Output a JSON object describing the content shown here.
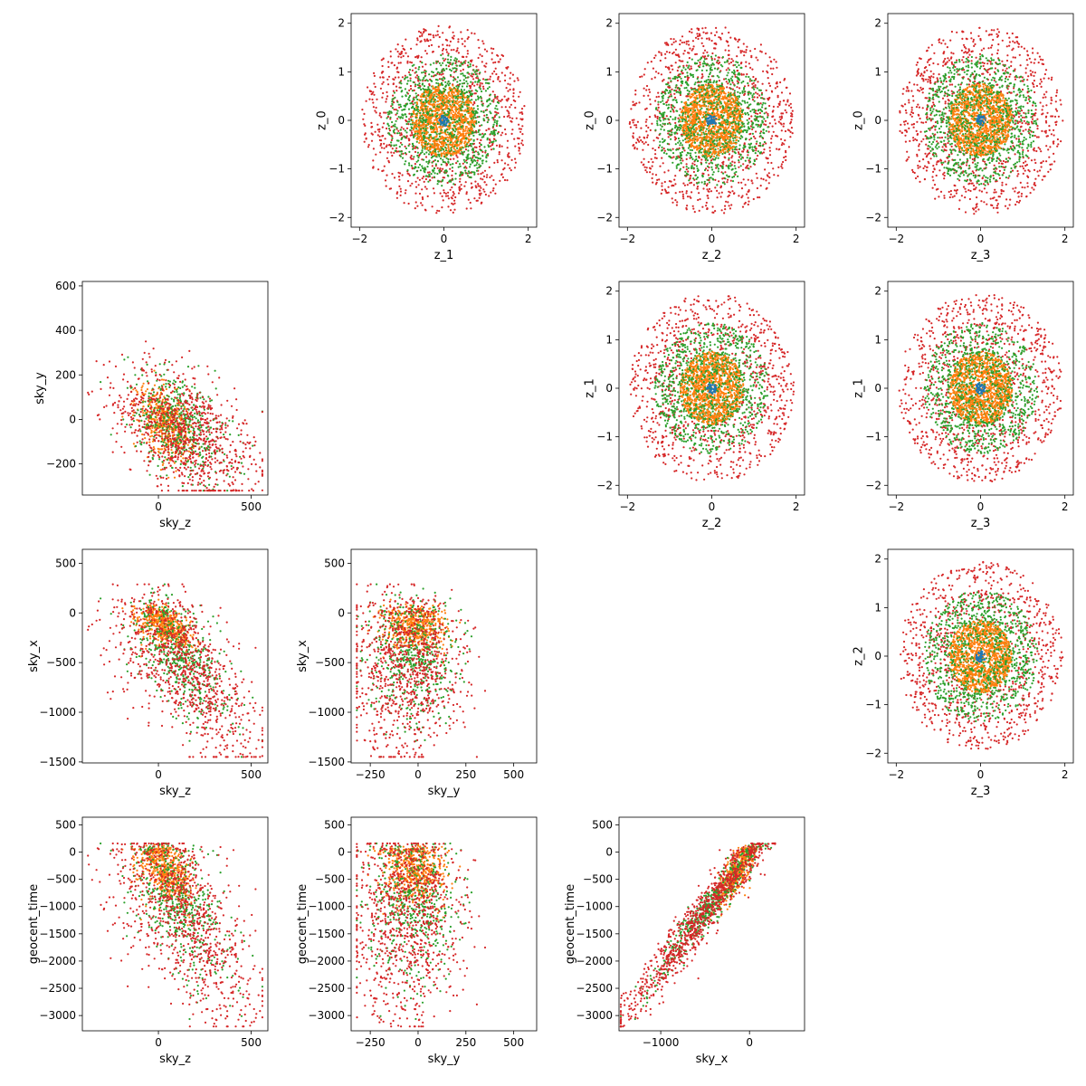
{
  "colors": {
    "c0": "#1f77b4",
    "c1": "#ff7f0e",
    "c2": "#2ca02c",
    "c3": "#d62728"
  },
  "chart_data": [
    {
      "type": "scatter",
      "row": 0,
      "col": 1,
      "xlabel": "z_1",
      "ylabel": "z_0",
      "xlim": [
        -2.2,
        2.2
      ],
      "ylim": [
        -2.2,
        2.2
      ],
      "xticks": [
        -2,
        0,
        2
      ],
      "yticks": [
        -2,
        -1,
        0,
        1,
        2
      ],
      "xticklabels": [
        "−2",
        "0",
        "2"
      ],
      "yticklabels": [
        "−2",
        "−1",
        "0",
        "1",
        "2"
      ]
    },
    {
      "type": "scatter",
      "row": 0,
      "col": 2,
      "xlabel": "z_2",
      "ylabel": "z_0",
      "xlim": [
        -2.2,
        2.2
      ],
      "ylim": [
        -2.2,
        2.2
      ],
      "xticks": [
        -2,
        0,
        2
      ],
      "yticks": [
        -2,
        -1,
        0,
        1,
        2
      ],
      "xticklabels": [
        "−2",
        "0",
        "2"
      ],
      "yticklabels": [
        "−2",
        "−1",
        "0",
        "1",
        "2"
      ]
    },
    {
      "type": "scatter",
      "row": 0,
      "col": 3,
      "xlabel": "z_3",
      "ylabel": "z_0",
      "xlim": [
        -2.2,
        2.2
      ],
      "ylim": [
        -2.2,
        2.2
      ],
      "xticks": [
        -2,
        0,
        2
      ],
      "yticks": [
        -2,
        -1,
        0,
        1,
        2
      ],
      "xticklabels": [
        "−2",
        "0",
        "2"
      ],
      "yticklabels": [
        "−2",
        "−1",
        "0",
        "1",
        "2"
      ]
    },
    {
      "type": "scatter",
      "row": 1,
      "col": 0,
      "xlabel": "sky_z",
      "ylabel": "sky_y",
      "xlim": [
        -410,
        590
      ],
      "ylim": [
        -340,
        620
      ],
      "xticks": [
        0,
        500
      ],
      "yticks": [
        -200,
        0,
        200,
        400,
        600
      ],
      "xticklabels": [
        "0",
        "500"
      ],
      "yticklabels": [
        "−200",
        "0",
        "200",
        "400",
        "600"
      ]
    },
    {
      "type": "scatter",
      "row": 1,
      "col": 2,
      "xlabel": "z_2",
      "ylabel": "z_1",
      "xlim": [
        -2.2,
        2.2
      ],
      "ylim": [
        -2.2,
        2.2
      ],
      "xticks": [
        -2,
        0,
        2
      ],
      "yticks": [
        -2,
        -1,
        0,
        1,
        2
      ],
      "xticklabels": [
        "−2",
        "0",
        "2"
      ],
      "yticklabels": [
        "−2",
        "−1",
        "0",
        "1",
        "2"
      ]
    },
    {
      "type": "scatter",
      "row": 1,
      "col": 3,
      "xlabel": "z_3",
      "ylabel": "z_1",
      "xlim": [
        -2.2,
        2.2
      ],
      "ylim": [
        -2.2,
        2.2
      ],
      "xticks": [
        -2,
        0,
        2
      ],
      "yticks": [
        -2,
        -1,
        0,
        1,
        2
      ],
      "xticklabels": [
        "−2",
        "0",
        "2"
      ],
      "yticklabels": [
        "−2",
        "−1",
        "0",
        "1",
        "2"
      ]
    },
    {
      "type": "scatter",
      "row": 2,
      "col": 0,
      "xlabel": "sky_z",
      "ylabel": "sky_x",
      "xlim": [
        -410,
        590
      ],
      "ylim": [
        -1510,
        640
      ],
      "xticks": [
        0,
        500
      ],
      "yticks": [
        -1500,
        -1000,
        -500,
        0,
        500
      ],
      "xticklabels": [
        "0",
        "500"
      ],
      "yticklabels": [
        "−1500",
        "−1000",
        "−500",
        "0",
        "500"
      ]
    },
    {
      "type": "scatter",
      "row": 2,
      "col": 1,
      "xlabel": "sky_y",
      "ylabel": "sky_x",
      "xlim": [
        -350,
        620
      ],
      "ylim": [
        -1510,
        640
      ],
      "xticks": [
        -250,
        0,
        250,
        500
      ],
      "yticks": [
        -1500,
        -1000,
        -500,
        0,
        500
      ],
      "xticklabels": [
        "−250",
        "0",
        "250",
        "500"
      ],
      "yticklabels": [
        "−1500",
        "−1000",
        "−500",
        "0",
        "500"
      ]
    },
    {
      "type": "scatter",
      "row": 2,
      "col": 3,
      "xlabel": "z_3",
      "ylabel": "z_2",
      "xlim": [
        -2.2,
        2.2
      ],
      "ylim": [
        -2.2,
        2.2
      ],
      "xticks": [
        -2,
        0,
        2
      ],
      "yticks": [
        -2,
        -1,
        0,
        1,
        2
      ],
      "xticklabels": [
        "−2",
        "0",
        "2"
      ],
      "yticklabels": [
        "−2",
        "−1",
        "0",
        "1",
        "2"
      ]
    },
    {
      "type": "scatter",
      "row": 3,
      "col": 0,
      "xlabel": "sky_z",
      "ylabel": "geocent_time",
      "xlim": [
        -410,
        590
      ],
      "ylim": [
        -3280,
        640
      ],
      "xticks": [
        0,
        500
      ],
      "yticks": [
        -3000,
        -2500,
        -2000,
        -1500,
        -1000,
        -500,
        0,
        500
      ],
      "xticklabels": [
        "0",
        "500"
      ],
      "yticklabels": [
        "−3000",
        "−2500",
        "−2000",
        "−1500",
        "−1000",
        "−500",
        "0",
        "500"
      ]
    },
    {
      "type": "scatter",
      "row": 3,
      "col": 1,
      "xlabel": "sky_y",
      "ylabel": "geocent_time",
      "xlim": [
        -350,
        620
      ],
      "ylim": [
        -3280,
        640
      ],
      "xticks": [
        -250,
        0,
        250,
        500
      ],
      "yticks": [
        -3000,
        -2500,
        -2000,
        -1500,
        -1000,
        -500,
        0,
        500
      ],
      "xticklabels": [
        "−250",
        "0",
        "250",
        "500"
      ],
      "yticklabels": [
        "−3000",
        "−2500",
        "−2000",
        "−1500",
        "−1000",
        "−500",
        "0",
        "500"
      ]
    },
    {
      "type": "scatter",
      "row": 3,
      "col": 2,
      "xlabel": "sky_x",
      "ylabel": "geocent_time",
      "xlim": [
        -1470,
        620
      ],
      "ylim": [
        -3280,
        640
      ],
      "xticks": [
        -1000,
        0
      ],
      "yticks": [
        -3000,
        -2500,
        -2000,
        -1500,
        -1000,
        -500,
        0,
        500
      ],
      "xticklabels": [
        "−1000",
        "0"
      ],
      "yticklabels": [
        "−3000",
        "−2500",
        "−2000",
        "−1500",
        "−1000",
        "−500",
        "0",
        "500"
      ]
    }
  ]
}
